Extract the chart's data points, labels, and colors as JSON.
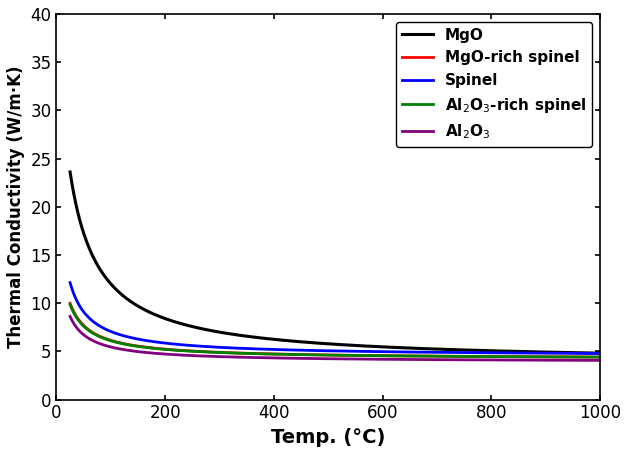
{
  "title": "",
  "xlabel": "Temp. (°C)",
  "ylabel": "Thermal Conductivity (W/m·K)",
  "xlim": [
    0,
    1000
  ],
  "ylim": [
    0,
    40
  ],
  "xticks": [
    0,
    200,
    400,
    600,
    800,
    1000
  ],
  "yticks": [
    0,
    5,
    10,
    15,
    20,
    25,
    30,
    35,
    40
  ],
  "series": [
    {
      "label": "MgO",
      "color": "#000000",
      "linewidth": 2.2,
      "a": 1050.0,
      "b": 28.0,
      "c": 3.8
    },
    {
      "label": "MgO-rich spinel",
      "color": "#ff0000",
      "linewidth": 2.0,
      "a": 220.0,
      "b": 13.0,
      "c": 4.2
    },
    {
      "label": "Spinel",
      "color": "#0000ff",
      "linewidth": 2.0,
      "a": 290.0,
      "b": 13.0,
      "c": 4.5
    },
    {
      "label": "Al$_2$O$_3$-rich spinel",
      "color": "#008000",
      "linewidth": 2.0,
      "a": 215.0,
      "b": 13.0,
      "c": 4.2
    },
    {
      "label": "Al$_2$O$_3$",
      "color": "#800080",
      "linewidth": 2.0,
      "a": 175.0,
      "b": 12.0,
      "c": 3.9
    }
  ],
  "legend_loc": "upper right",
  "legend_fontsize": 11,
  "background_color": "#ffffff",
  "tick_labelsize": 12,
  "xlabel_fontsize": 14,
  "ylabel_fontsize": 12
}
